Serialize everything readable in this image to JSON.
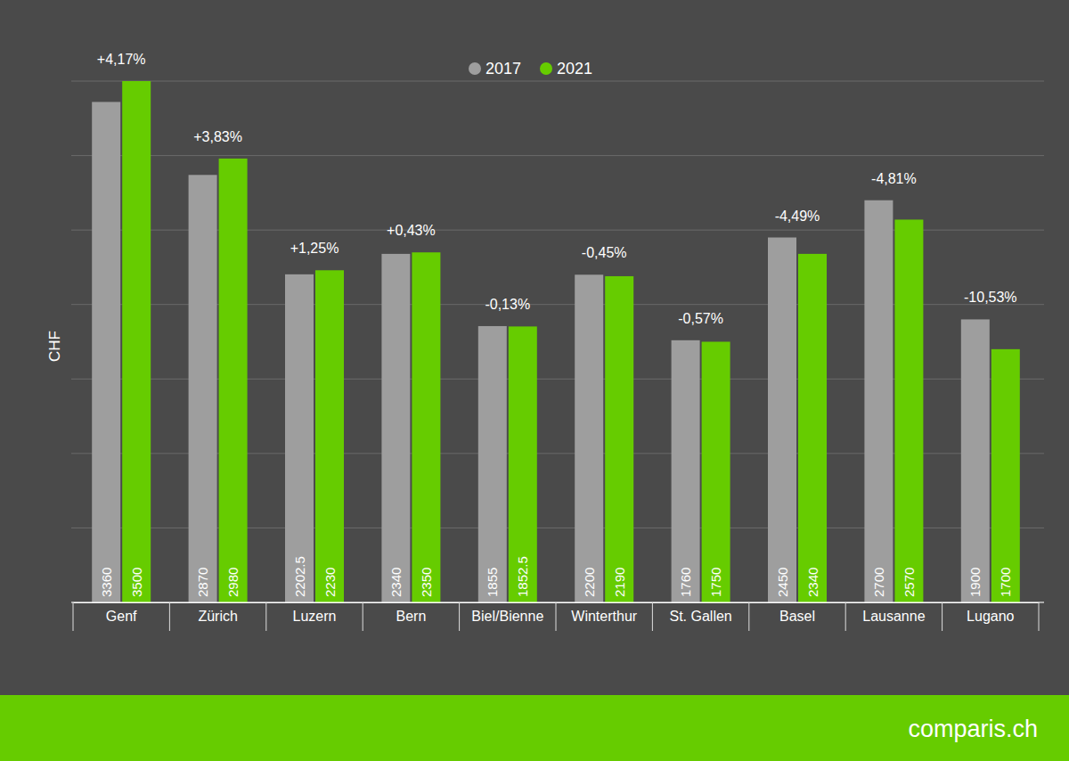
{
  "chart_data": {
    "type": "bar",
    "y_label": "CHF",
    "categories": [
      "Genf",
      "Zürich",
      "Luzern",
      "Bern",
      "Biel/Bienne",
      "Winterthur",
      "St. Gallen",
      "Basel",
      "Lausanne",
      "Lugano"
    ],
    "series": [
      {
        "name": "2017",
        "color": "#9e9e9e",
        "values": [
          3360,
          2870,
          2202.5,
          2340,
          1855,
          2200,
          1760,
          2450,
          2700,
          1900
        ]
      },
      {
        "name": "2021",
        "color": "#66cc00",
        "values": [
          3500,
          2980,
          2230,
          2350,
          1852.5,
          2190,
          1750,
          2340,
          2570,
          1700
        ]
      }
    ],
    "annotations": [
      "+4,17%",
      "+3,83%",
      "+1,25%",
      "+0,43%",
      "-0,13%",
      "-0,45%",
      "-0,57%",
      "-4,49%",
      "-4,81%",
      "-10,53%"
    ],
    "ylim": [
      0,
      3500
    ],
    "yticks": [
      0,
      500,
      1000,
      1500,
      2000,
      2500,
      3000,
      3500
    ],
    "grid": true,
    "legend": "top",
    "data_labels": true,
    "tick_labels": "x",
    "source": "comparis.ch"
  }
}
